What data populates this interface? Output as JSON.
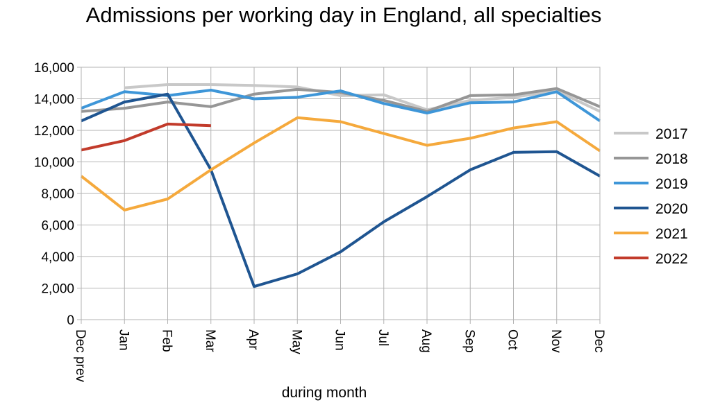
{
  "chart_data": {
    "type": "line",
    "title": "Admissions per working day in England, all specialties",
    "xlabel": "during  month",
    "ylabel": "",
    "categories": [
      "Dec prev",
      "Jan",
      "Feb",
      "Mar",
      "Apr",
      "May",
      "Jun",
      "Jul",
      "Aug",
      "Sep",
      "Oct",
      "Nov",
      "Dec"
    ],
    "ylim": [
      0,
      16000
    ],
    "yticks": [
      0,
      2000,
      4000,
      6000,
      8000,
      10000,
      12000,
      14000,
      16000
    ],
    "ytick_labels": [
      "0",
      "2,000",
      "4,000",
      "6,000",
      "8,000",
      "10,000",
      "12,000",
      "14,000",
      "16,000"
    ],
    "grid": true,
    "legend_position": "right",
    "series": [
      {
        "name": "2017",
        "color": "#c8c8c8",
        "values": [
          null,
          14700,
          14900,
          14900,
          14850,
          14750,
          14200,
          14250,
          13300,
          13900,
          14100,
          14500,
          13200
        ]
      },
      {
        "name": "2018",
        "color": "#969696",
        "values": [
          13200,
          13400,
          13800,
          13500,
          14300,
          14600,
          14400,
          13900,
          13200,
          14200,
          14250,
          14650,
          13500
        ]
      },
      {
        "name": "2019",
        "color": "#3e96d8",
        "values": [
          13400,
          14450,
          14200,
          14550,
          14000,
          14100,
          14500,
          13700,
          13100,
          13750,
          13800,
          14450,
          12600
        ]
      },
      {
        "name": "2020",
        "color": "#1f5591",
        "values": [
          12600,
          13800,
          14300,
          9500,
          2100,
          2900,
          4300,
          6200,
          7800,
          9500,
          10600,
          10650,
          9100
        ]
      },
      {
        "name": "2021",
        "color": "#f5a93c",
        "values": [
          9100,
          6950,
          7650,
          9500,
          11200,
          12800,
          12550,
          11800,
          11050,
          11500,
          12150,
          12550,
          10700
        ]
      },
      {
        "name": "2022",
        "color": "#c23b2b",
        "values": [
          10750,
          11350,
          12400,
          12300,
          null,
          null,
          null,
          null,
          null,
          null,
          null,
          null,
          null
        ]
      }
    ]
  }
}
